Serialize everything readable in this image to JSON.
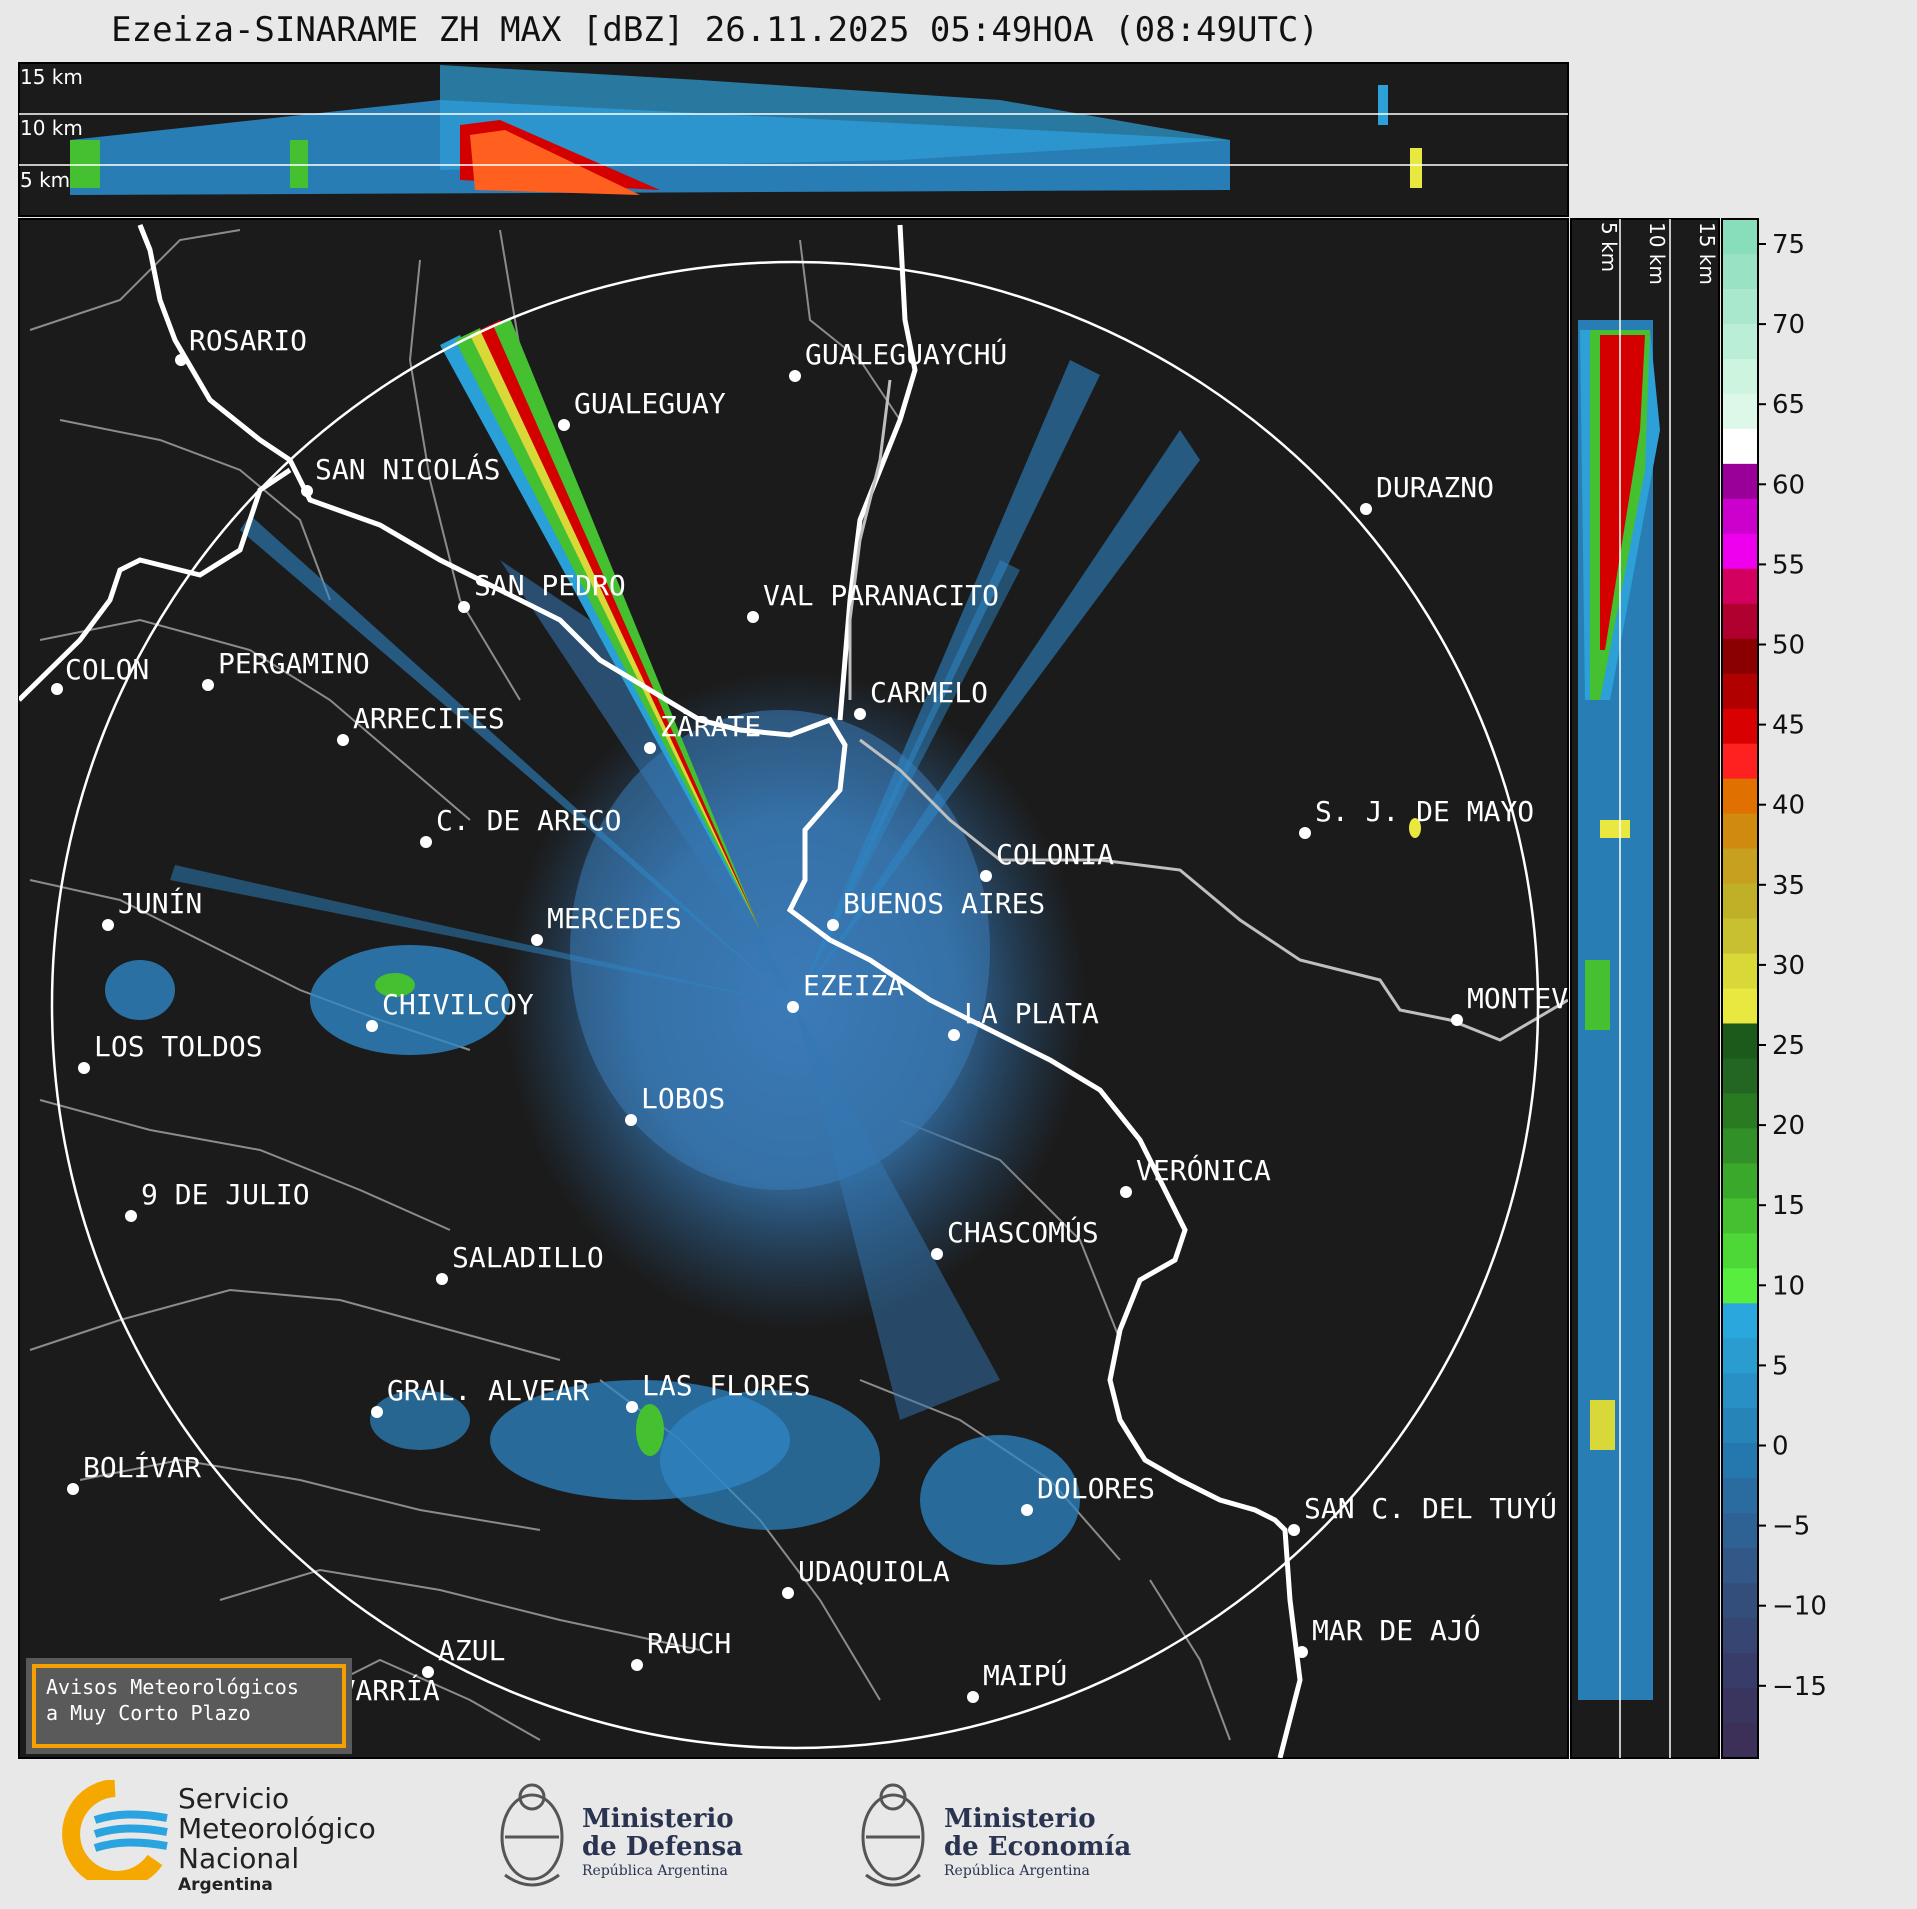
{
  "title": "Ezeiza-SINARAME ZH MAX [dBZ] 26.11.2025 05:49HOA (08:49UTC)",
  "height_labels": [
    "15 km",
    "10 km",
    "5 km"
  ],
  "cities": [
    {
      "name": "ROSARIO"
    },
    {
      "name": "GUALEGUAYCHÚ"
    },
    {
      "name": "GUALEGUAY"
    },
    {
      "name": "SAN NICOLÁS"
    },
    {
      "name": "DURAZNO"
    },
    {
      "name": "SAN PEDRO"
    },
    {
      "name": "VAL PARANACITO"
    },
    {
      "name": "COLON"
    },
    {
      "name": "PERGAMINO"
    },
    {
      "name": "CARMELO"
    },
    {
      "name": "ARRECIFES"
    },
    {
      "name": "ZÁRATE"
    },
    {
      "name": "S. J. DE MAYO"
    },
    {
      "name": "C. DE ARECO"
    },
    {
      "name": "COLONIA"
    },
    {
      "name": "JUNÍN"
    },
    {
      "name": "MERCEDES"
    },
    {
      "name": "BUENOS AIRES"
    },
    {
      "name": "EZEIZA"
    },
    {
      "name": "MONTEVIDEO"
    },
    {
      "name": "CHIVILCOY"
    },
    {
      "name": "LA PLATA"
    },
    {
      "name": "LOS TOLDOS"
    },
    {
      "name": "LOBOS"
    },
    {
      "name": "VERÓNICA"
    },
    {
      "name": "9 DE JULIO"
    },
    {
      "name": "CHASCOMÚS"
    },
    {
      "name": "SALADILLO"
    },
    {
      "name": "GRAL. ALVEAR"
    },
    {
      "name": "LAS FLORES"
    },
    {
      "name": "BOLÍVAR"
    },
    {
      "name": "DOLORES"
    },
    {
      "name": "SAN C. DEL TUYÚ"
    },
    {
      "name": "UDAQUIOLA"
    },
    {
      "name": "MAR DE AJÓ"
    },
    {
      "name": "AZUL"
    },
    {
      "name": "RAUCH"
    },
    {
      "name": "OLAVARRÍA"
    },
    {
      "name": "MAIPÚ"
    }
  ],
  "colorbar": {
    "ticks": [
      "75",
      "70",
      "65",
      "60",
      "55",
      "50",
      "45",
      "40",
      "35",
      "30",
      "25",
      "20",
      "15",
      "10",
      "5",
      "0",
      "−5",
      "−10",
      "−15"
    ],
    "segments": [
      "#88ddbb",
      "#99e2c4",
      "#aae8cd",
      "#bbeed6",
      "#ccf4df",
      "#ddf8e8",
      "#ffffff",
      "#9a0099",
      "#cc00cc",
      "#ee00ee",
      "#d40060",
      "#b00030",
      "#8a0000",
      "#b00000",
      "#d80000",
      "#ff2020",
      "#e07000",
      "#d08a10",
      "#c8a020",
      "#c0b028",
      "#c8c030",
      "#d8d838",
      "#e8e840",
      "#1c5a1c",
      "#226622",
      "#2a7a22",
      "#329028",
      "#3aa82a",
      "#44c030",
      "#4ed838",
      "#58ee40",
      "#2aa8dd",
      "#2a9ccf",
      "#2890c4",
      "#2684b8",
      "#2478ad",
      "#2a6ca0",
      "#2e6294",
      "#325888",
      "#344e7c",
      "#364572",
      "#383c68",
      "#3a355f",
      "#3c3058"
    ]
  },
  "banner": {
    "line1": "Avisos Meteorológicos",
    "line2": "a Muy Corto Plazo"
  },
  "logos": {
    "smn_line1": "Servicio",
    "smn_line2": "Meteorológico",
    "smn_line3": "Nacional",
    "smn_sub": "Argentina",
    "def_line1": "Ministerio",
    "def_line2": "de Defensa",
    "def_sub": "República Argentina",
    "eco_line1": "Ministerio",
    "eco_line2": "de Economía",
    "eco_sub": "República Argentina"
  },
  "colors": {
    "map_bg": "#1b1b1b",
    "accent": "#f5a000",
    "echo": "#2e6fa8"
  }
}
